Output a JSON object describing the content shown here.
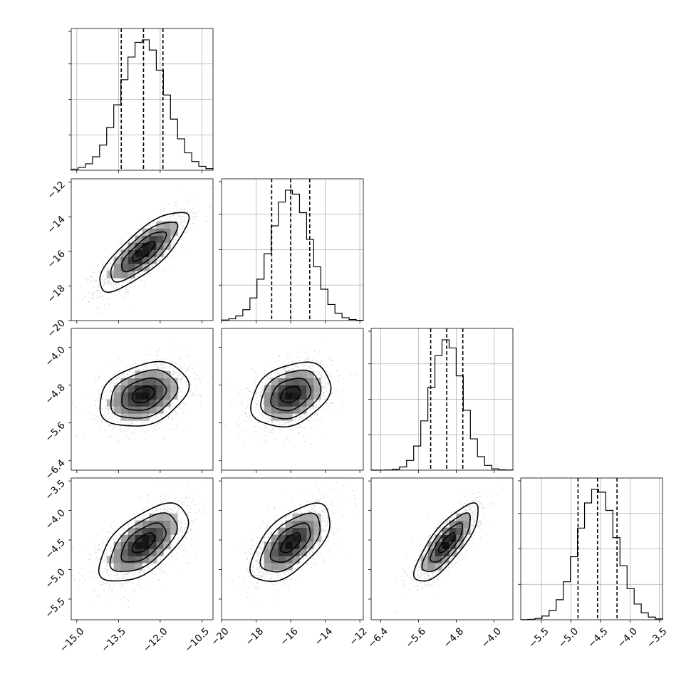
{
  "chart_data": {
    "type": "corner",
    "title": "",
    "parameters": [
      {
        "index": 0,
        "mean": -12.6,
        "sd": 0.8,
        "range": [
          -15.2,
          -10.1
        ],
        "ticks": [
          -15.0,
          -13.5,
          -12.0,
          -10.5
        ],
        "tick_labels": [
          "−15.0",
          "−13.5",
          "−12.0",
          "−10.5"
        ],
        "quantiles": [
          -13.4,
          -12.6,
          -11.9
        ]
      },
      {
        "index": 1,
        "mean": -16.0,
        "sd": 1.15,
        "range": [
          -20.0,
          -11.8
        ],
        "ticks": [
          -20,
          -18,
          -16,
          -14,
          -12
        ],
        "tick_labels": [
          "−20",
          "−18",
          "−16",
          "−14",
          "−12"
        ],
        "quantiles": [
          -17.1,
          -16.0,
          -14.9
        ]
      },
      {
        "index": 2,
        "mean": -5.0,
        "sd": 0.34,
        "range": [
          -6.6,
          -3.6
        ],
        "ticks": [
          -6.4,
          -5.6,
          -4.8,
          -4.0
        ],
        "tick_labels": [
          "−6.4",
          "−5.6",
          "−4.8",
          "−4.0"
        ],
        "quantiles": [
          -5.34,
          -5.0,
          -4.66
        ]
      },
      {
        "index": 3,
        "mean": -4.55,
        "sd": 0.33,
        "range": [
          -5.85,
          -3.45
        ],
        "ticks": [
          -5.5,
          -5.0,
          -4.5,
          -4.0,
          -3.5
        ],
        "tick_labels": [
          "−5.5",
          "−5.0",
          "−4.5",
          "−4.0",
          "−3.5"
        ],
        "quantiles": [
          -4.88,
          -4.55,
          -4.22
        ]
      }
    ],
    "correlations": {
      "0-1": 0.8,
      "0-2": 0.3,
      "1-2": 0.3,
      "0-3": 0.6,
      "1-3": 0.6,
      "2-3": 0.8
    },
    "histogram": {
      "bins": 20,
      "peak_fraction": 0.92
    },
    "contour_levels_sigma": [
      0.5,
      1.0,
      1.5,
      2.0
    ],
    "grid": true,
    "colors": {
      "line": "#000000",
      "grid": "#b0b0b0",
      "points": "#000000"
    }
  }
}
